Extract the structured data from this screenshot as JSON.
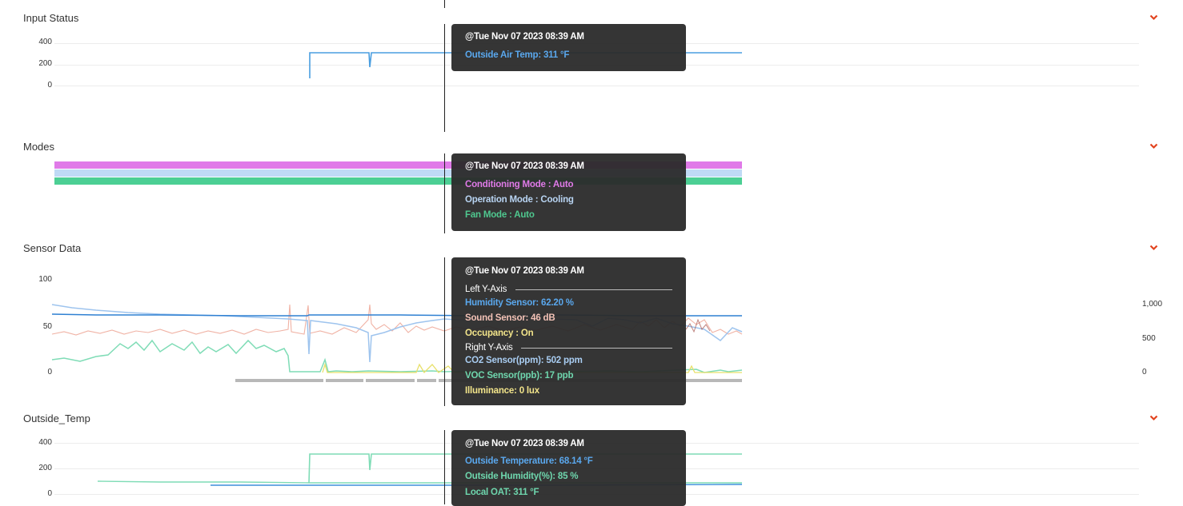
{
  "sections": {
    "input_status": {
      "title": "Input Status",
      "y_ticks": [
        "400",
        "200",
        "0"
      ],
      "tooltip": {
        "timestamp": "@Tue Nov 07 2023 08:39 AM",
        "rows": [
          {
            "text": "Outside Air Temp: 311 °F",
            "color": "#5aa8ee"
          }
        ]
      },
      "chart_data": {
        "type": "line",
        "ylim": [
          0,
          400
        ],
        "series": [
          {
            "name": "Outside Air Temp",
            "unit": "°F",
            "color": "#4a9ee0",
            "values_summary": "drops to ~70 at first reading, ~170 dip, otherwise ~311"
          }
        ]
      }
    },
    "modes": {
      "title": "Modes",
      "tooltip": {
        "timestamp": "@Tue Nov 07 2023 08:39 AM",
        "rows": [
          {
            "text": "Conditioning Mode : Auto",
            "color": "#e07ae8"
          },
          {
            "text": "Operation Mode : Cooling",
            "color": "#b8d4f2"
          },
          {
            "text": "Fan Mode : Auto",
            "color": "#4fc88f"
          }
        ]
      },
      "bands": [
        {
          "name": "Conditioning Mode",
          "color": "#e07ae8"
        },
        {
          "name": "Operation Mode",
          "color": "#bfdaf5"
        },
        {
          "name": "Fan Mode",
          "color": "#4ccf94"
        }
      ]
    },
    "sensor_data": {
      "title": "Sensor Data",
      "y_ticks_left": [
        "100",
        "50",
        "0"
      ],
      "y_ticks_right": [
        "1,000",
        "500",
        "0"
      ],
      "tooltip": {
        "timestamp": "@Tue Nov 07 2023 08:39 AM",
        "left_axis_label": "Left Y-Axis",
        "right_axis_label": "Right Y-Axis",
        "left_rows": [
          {
            "text": "Humidity Sensor: 62.20 %",
            "color": "#5aa8ee"
          },
          {
            "text": "Sound Sensor: 46 dB",
            "color": "#f3c2b6"
          },
          {
            "text": "Occupancy : On",
            "color": "#f2e48a"
          }
        ],
        "right_rows": [
          {
            "text": "CO2 Sensor(ppm): 502 ppm",
            "color": "#a9cdf2"
          },
          {
            "text": "VOC Sensor(ppb): 17 ppb",
            "color": "#6ed6ad"
          },
          {
            "text": "Illuminance: 0 lux",
            "color": "#f2e48a"
          }
        ]
      },
      "chart_data": {
        "type": "line",
        "ylim_left": [
          0,
          100
        ],
        "ylim_right": [
          0,
          1000
        ],
        "series": [
          {
            "name": "Humidity Sensor",
            "axis": "left",
            "color": "#3d8fdc",
            "approx_value": 62
          },
          {
            "name": "Sound Sensor",
            "axis": "left",
            "color": "#f0b2a4",
            "approx_value": 46
          },
          {
            "name": "Occupancy",
            "axis": "left",
            "color": "#e8e06a"
          },
          {
            "name": "CO2 Sensor(ppm)",
            "axis": "right",
            "color": "#9ec4ee",
            "approx_value": 502
          },
          {
            "name": "VOC Sensor(ppb)",
            "axis": "right",
            "color": "#7fdcb6",
            "approx_value": 17
          },
          {
            "name": "Illuminance",
            "axis": "right",
            "color": "#e8e06a",
            "approx_value": 0
          }
        ]
      }
    },
    "outside_temp": {
      "title": "Outside_Temp",
      "y_ticks": [
        "400",
        "200",
        "0"
      ],
      "tooltip": {
        "timestamp": "@Tue Nov 07 2023 08:39 AM",
        "rows": [
          {
            "text": "Outside Temperature: 68.14 °F",
            "color": "#5aa8ee"
          },
          {
            "text": "Outside Humidity(%): 85 %",
            "color": "#6ed6ad"
          },
          {
            "text": "Local OAT: 311 °F",
            "color": "#6ed6ad"
          }
        ]
      },
      "chart_data": {
        "type": "line",
        "ylim": [
          0,
          400
        ],
        "series": [
          {
            "name": "Outside Temperature",
            "unit": "°F",
            "color": "#3d8fdc",
            "approx_value": 68.14
          },
          {
            "name": "Outside Humidity(%)",
            "unit": "%",
            "color": "#7fdcb6",
            "approx_value": 85
          },
          {
            "name": "Local OAT",
            "unit": "°F",
            "color": "#7fdcb6",
            "approx_value": 311
          }
        ]
      }
    }
  },
  "colors": {
    "accent_chevron": "#e2431e",
    "tooltip_bg": "#2a2a2a"
  },
  "icons": {
    "collapse": "chevron-down-icon"
  }
}
